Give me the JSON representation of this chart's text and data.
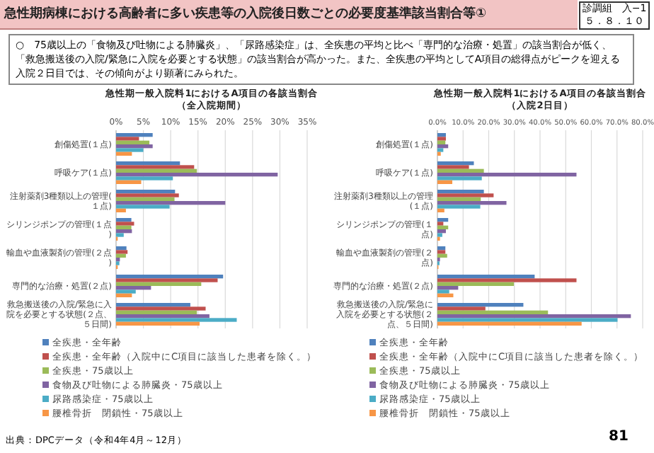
{
  "chart_data": [
    {
      "type": "other",
      "title": "急性期病棟における高齢者に多い疾患等の入院後日数ごとの必要度基準該当割合等①",
      "annotations": [
        "診調組　入−1\n５．８．１０",
        "○　75歳以上の「食物及び吐物による肺臓炎」、「尿路感染症」は、全疾患の平均と比べ「専門的な治療・処置」の該当割合が低く、「救急搬送後の入院/緊急に入院を必要とする状態」の該当割合が高かった。また、全疾患の平均としてA項目の総得点がピークを迎える入院２日目では、その傾向がより顕著にみられた。",
        "出典：DPCデータ（令和4年4月～12月）",
        "81"
      ]
    },
    {
      "type": "bar",
      "orientation": "horizontal",
      "title": "急性期一般入院料1におけるA項目の各該当割合（全入院期間）",
      "categories": [
        "創傷処置(１点)",
        "呼吸ケア(１点)",
        "注射薬剤3種類以上の管理(１点)",
        "シリンジポンプの管理(１点)",
        "輸血や血液製剤の管理(２点)",
        "専門的な治療・処置(２点)",
        "救急搬送後の入院/緊急に入院を必要とする状態(２点、５日間)"
      ],
      "series": [
        {
          "name": "全疾患・全年齢",
          "color": "#4f81bd",
          "values": [
            6.7,
            11.7,
            10.8,
            2.8,
            1.9,
            19.6,
            13.6
          ]
        },
        {
          "name": "全疾患・全年齢（入院中にC項目に該当した患者を除く。）",
          "color": "#c0504d",
          "values": [
            4.2,
            14.3,
            11.5,
            3.3,
            2.1,
            18.6,
            16.4
          ]
        },
        {
          "name": "全疾患・75歳以上",
          "color": "#9bbb59",
          "values": [
            6.1,
            14.8,
            10.7,
            2.8,
            1.8,
            15.6,
            14.8
          ]
        },
        {
          "name": "食物及び吐物による肺臓炎・75歳以上",
          "color": "#8064a2",
          "values": [
            6.7,
            29.6,
            20.0,
            2.9,
            0.7,
            6.4,
            17.1
          ]
        },
        {
          "name": "尿路感染症・75歳以上",
          "color": "#4bacc6",
          "values": [
            5.0,
            10.4,
            9.8,
            1.4,
            0.6,
            3.6,
            22.1
          ]
        },
        {
          "name": "腰椎骨折　閉鎖性・75歳以上",
          "color": "#f79646",
          "values": [
            2.9,
            4.6,
            1.8,
            0.3,
            0.3,
            2.9,
            15.3
          ]
        }
      ],
      "xlim": [
        0,
        35
      ],
      "xticks": [
        {
          "value": 0,
          "label": "0%"
        },
        {
          "value": 5,
          "label": "5%"
        },
        {
          "value": 10,
          "label": "10%"
        },
        {
          "value": 15,
          "label": "15%"
        },
        {
          "value": 20,
          "label": "20%"
        },
        {
          "value": 25,
          "label": "25%"
        },
        {
          "value": 30,
          "label": "30%"
        },
        {
          "value": 35,
          "label": "35%"
        }
      ],
      "grid": "x",
      "legend": "bottom"
    },
    {
      "type": "bar",
      "orientation": "horizontal",
      "title": "急性期一般入院料1におけるA項目の各該当割合（入院2日目）",
      "categories": [
        "創傷処置(１点)",
        "呼吸ケア(１点)",
        "注射薬剤3種類以上の管理(１点)",
        "シリンジポンプの管理(１点)",
        "輸血や血液製剤の管理(２点)",
        "専門的な治療・処置(２点)",
        "救急搬送後の入院/緊急に入院を必要とする状態(２点、５日間)"
      ],
      "series": [
        {
          "name": "全疾患・全年齢",
          "color": "#4f81bd",
          "values": [
            3.3,
            14.2,
            18.1,
            4.2,
            3.1,
            37.9,
            33.5
          ]
        },
        {
          "name": "全疾患・全年齢（入院中にC項目に該当した患者を除く。）",
          "color": "#c0504d",
          "values": [
            3.3,
            12.3,
            21.9,
            2.3,
            3.1,
            54.2,
            18.7
          ]
        },
        {
          "name": "全疾患・75歳以上",
          "color": "#9bbb59",
          "values": [
            3.1,
            18.1,
            16.9,
            4.2,
            3.8,
            29.8,
            43.1
          ]
        },
        {
          "name": "食物及び吐物による肺臓炎・75歳以上",
          "color": "#8064a2",
          "values": [
            4.2,
            54.2,
            26.9,
            3.3,
            1.0,
            8.1,
            75.4
          ]
        },
        {
          "name": "尿路感染症・75歳以上",
          "color": "#4bacc6",
          "values": [
            2.3,
            17.3,
            16.7,
            1.9,
            0.8,
            4.6,
            70.2
          ]
        },
        {
          "name": "腰椎骨折　閉鎖性・75歳以上",
          "color": "#f79646",
          "values": [
            1.3,
            5.8,
            2.7,
            1.0,
            0.4,
            6.2,
            56.2
          ]
        }
      ],
      "xlim": [
        0,
        80
      ],
      "xticks": [
        {
          "value": 0,
          "label": "0.0%"
        },
        {
          "value": 10,
          "label": "10.0%"
        },
        {
          "value": 20,
          "label": "20.0%"
        },
        {
          "value": 30,
          "label": "30.0%"
        },
        {
          "value": 40,
          "label": "40.0%"
        },
        {
          "value": 50,
          "label": "50.0%"
        },
        {
          "value": 60,
          "label": "60.0%"
        },
        {
          "value": 70,
          "label": "70.0%"
        },
        {
          "value": 80,
          "label": "80.0%"
        }
      ],
      "grid": "x",
      "legend": "bottom"
    }
  ]
}
